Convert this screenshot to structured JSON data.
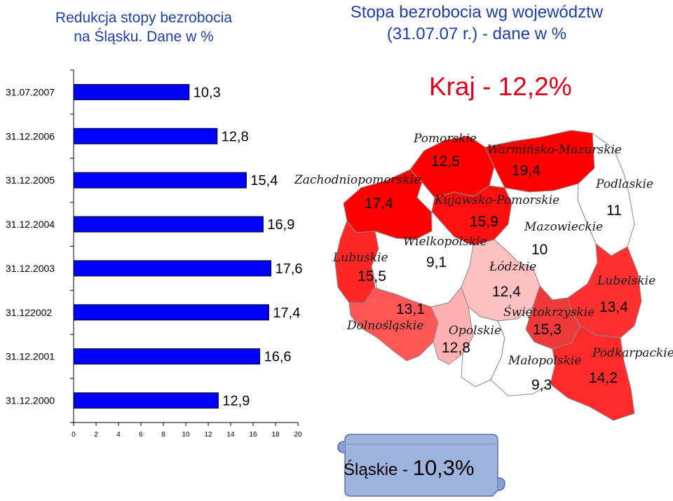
{
  "left_title": [
    "Redukcja stopy bezrobocia",
    "na Śląsku. Dane w %"
  ],
  "right_title": [
    "Stopa bezrobocia wg województw",
    "(31.07.07 r.) - dane w %"
  ],
  "kraj_label": "Kraj - 12,2%",
  "slaskie_label": "Śląskie - ",
  "slaskie_value": "10,3%",
  "chart_data": {
    "type": "bar",
    "orientation": "horizontal",
    "categories": [
      "31.07.2007",
      "31.12.2006",
      "31.12.2005",
      "31.12.2004",
      "31.12.2003",
      "31.122002",
      "31.12.2001",
      "31.12.2000"
    ],
    "values": [
      10.3,
      12.8,
      15.4,
      16.9,
      17.6,
      17.4,
      16.6,
      12.9
    ],
    "value_labels": [
      "10,3",
      "12,8",
      "15,4",
      "16,9",
      "17,6",
      "17,4",
      "16,6",
      "12,9"
    ],
    "xlim": [
      0,
      20
    ],
    "xticks": [
      "0",
      "2",
      "4",
      "6",
      "8",
      "10",
      "12",
      "14",
      "16",
      "18",
      "20"
    ],
    "bar_color": "#0000ff"
  },
  "map": {
    "regions": [
      {
        "name": "Pomorskie",
        "value": "12,5",
        "color": "#ff0000"
      },
      {
        "name": "Warmińsko-Mazurskie",
        "value": "19,4",
        "color": "#ff0000"
      },
      {
        "name": "Zachodniopomorskie",
        "value": "17,4",
        "color": "#ff0000"
      },
      {
        "name": "Podlaskie",
        "value": "11",
        "color": "#ffffff"
      },
      {
        "name": "Kujawsko-Pomorskie",
        "value": "15,9",
        "color": "#ff1010"
      },
      {
        "name": "Mazowieckie",
        "value": "10",
        "color": "#ffffff"
      },
      {
        "name": "Wielkopolskie",
        "value": "9,1",
        "color": "#ffffff"
      },
      {
        "name": "Lubuskie",
        "value": "15,5",
        "color": "#ff2626"
      },
      {
        "name": "Łódzkie",
        "value": "12,4",
        "color": "#ffc0c0"
      },
      {
        "name": "Lubelskie",
        "value": "13,4",
        "color": "#ff3030"
      },
      {
        "name": "Dolnośląskie",
        "value": "13,1",
        "color": "#ff5656"
      },
      {
        "name": "Świętokrzyskie",
        "value": "15,3",
        "color": "#ef3a3a"
      },
      {
        "name": "Opolskie",
        "value": "12,8",
        "color": "#ffb0b0"
      },
      {
        "name": "Podkarpackie",
        "value": "14,2",
        "color": "#ff2b2b"
      },
      {
        "name": "Małopolskie",
        "value": "9,3",
        "color": "#ffffff"
      }
    ]
  }
}
